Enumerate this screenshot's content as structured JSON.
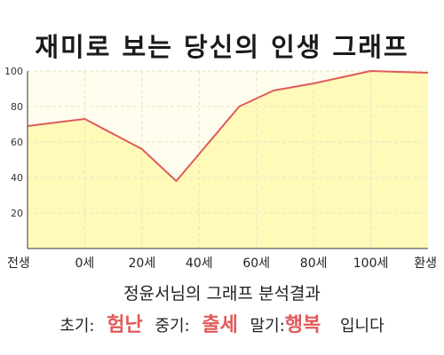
{
  "chart_data": {
    "type": "area",
    "title": "재미로 보는 당신의 인생 그래프",
    "x_labels": [
      "전생",
      "0세",
      "20세",
      "40세",
      "60세",
      "80세",
      "100세",
      "환생"
    ],
    "points": [
      {
        "x": 0,
        "y": 69
      },
      {
        "x": 1,
        "y": 73
      },
      {
        "x": 2,
        "y": 56
      },
      {
        "x": 2.6,
        "y": 38
      },
      {
        "x": 3.7,
        "y": 80
      },
      {
        "x": 4.3,
        "y": 89
      },
      {
        "x": 5,
        "y": 93
      },
      {
        "x": 6,
        "y": 100
      },
      {
        "x": 7,
        "y": 99
      }
    ],
    "y_ticks": [
      20,
      40,
      60,
      80,
      100
    ],
    "ylim": [
      0,
      100
    ],
    "grid": true,
    "colors": {
      "line": "#e05a5a",
      "fill": "#fffab8",
      "background": "#fffdee",
      "grid": "#e7e2c4"
    }
  },
  "summary": {
    "name": "정윤서",
    "suffix": "님의 그래프 분석결과"
  },
  "result": {
    "early_label": "초기:",
    "early_value": "험난",
    "mid_label": "중기:",
    "mid_value": "출세",
    "late_label": "말기:",
    "late_value": "행복",
    "ending": "입니다"
  }
}
